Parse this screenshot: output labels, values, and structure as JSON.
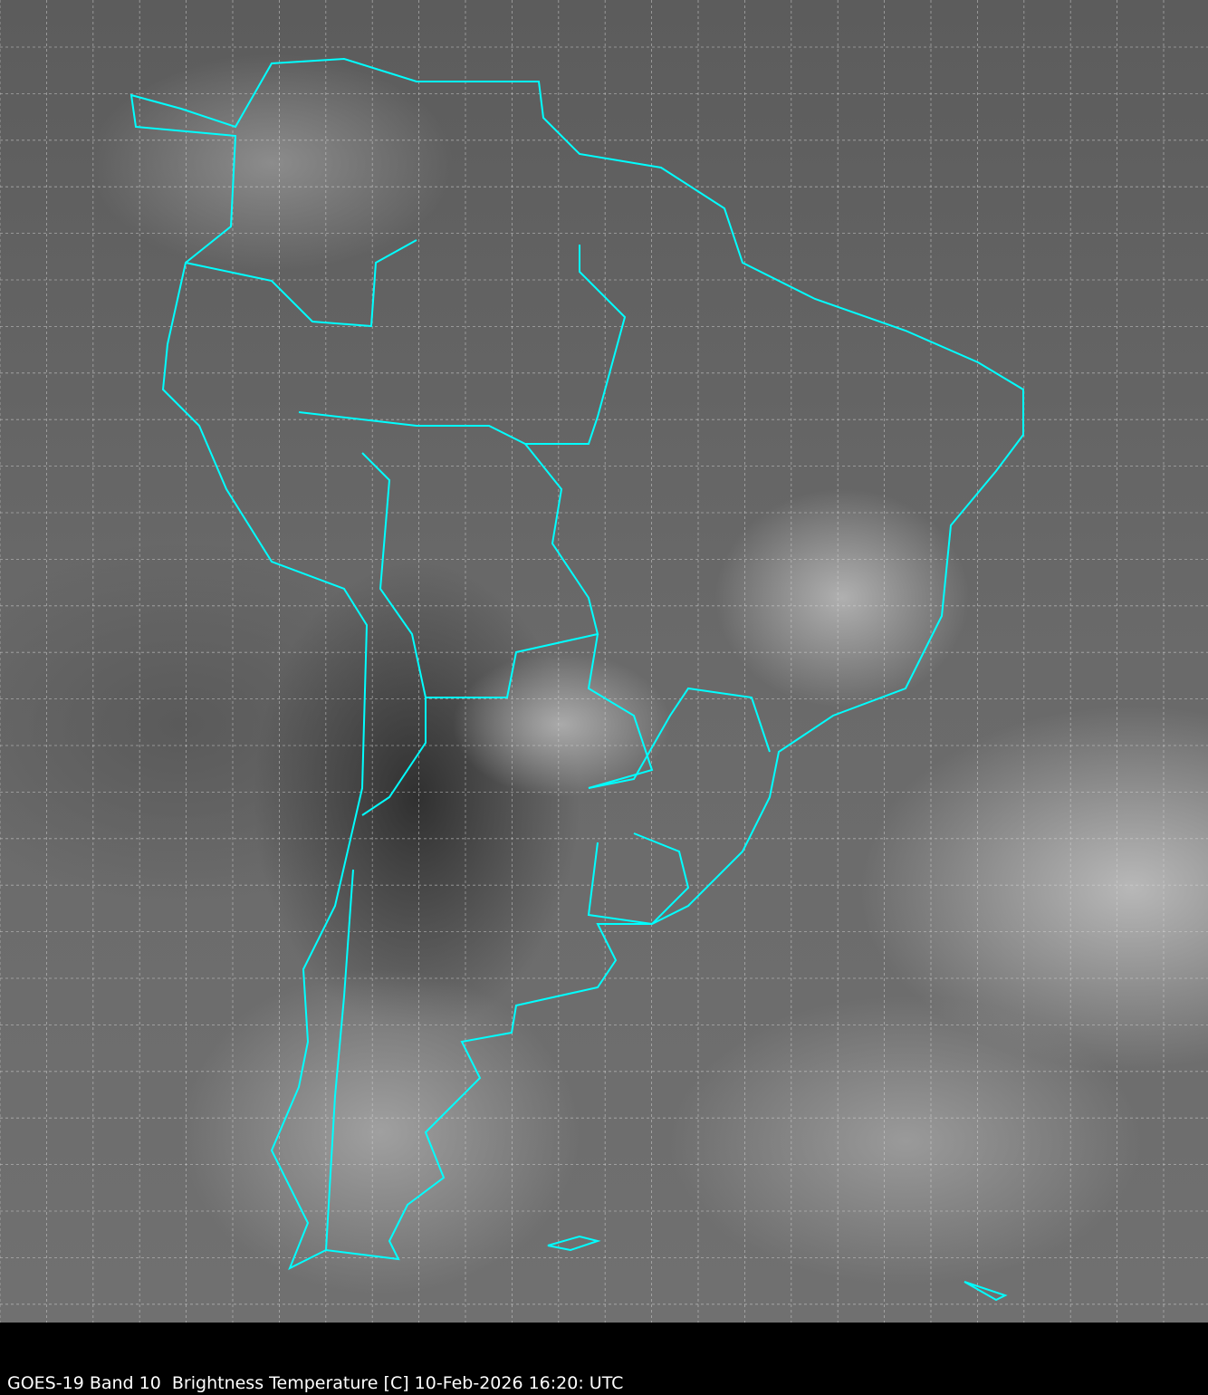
{
  "caption": "GOES-19 Band 10  Brightness Temperature [C] 10-Feb-2026 16:20: UTC",
  "colors": {
    "coastline": "#00ffff",
    "grid": "#d8d8d8",
    "background": "#000000"
  }
}
